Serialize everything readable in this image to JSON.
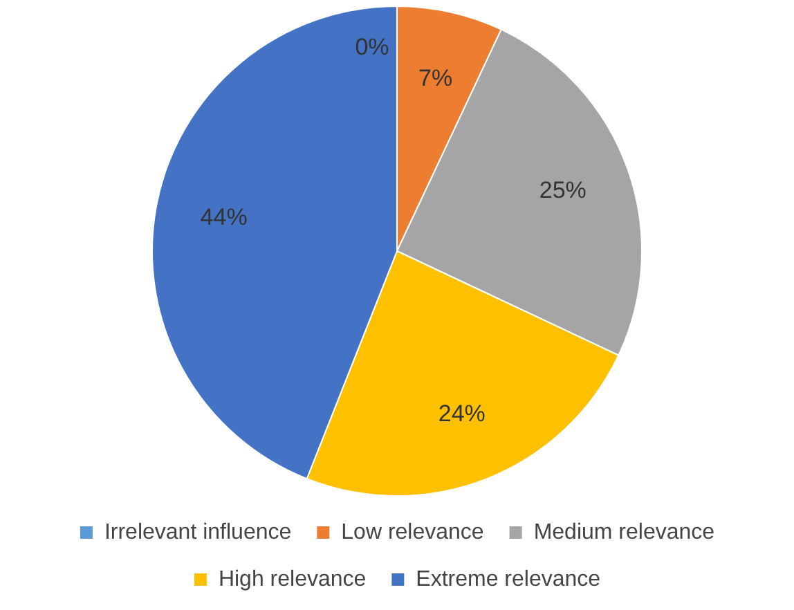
{
  "chart_data": {
    "type": "pie",
    "categories": [
      "Irrelevant influence",
      "Low relevance",
      "Medium relevance",
      "High relevance",
      "Extreme relevance"
    ],
    "values": [
      0,
      7,
      25,
      24,
      44
    ],
    "value_labels": [
      "0%",
      "7%",
      "25%",
      "24%",
      "44%"
    ],
    "colors": [
      "#5b9bd5",
      "#ed7d31",
      "#a5a5a5",
      "#ffc000",
      "#4472c4"
    ],
    "legend": "bottom"
  }
}
